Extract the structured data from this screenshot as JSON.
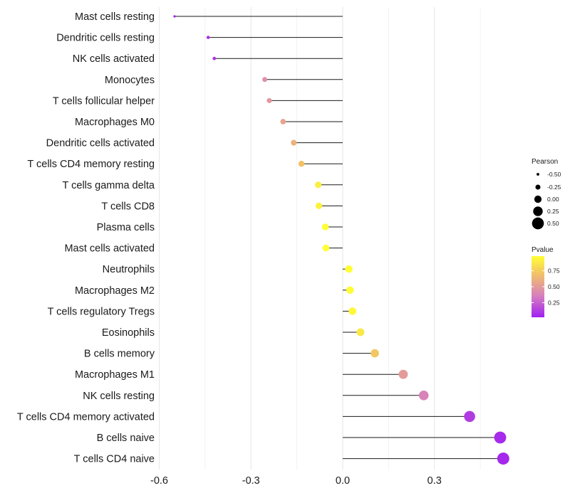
{
  "chart_data": {
    "type": "lollipop",
    "title": "",
    "xlabel": "",
    "ylabel": "",
    "xlim": [
      -0.62,
      0.56
    ],
    "xticks": [
      -0.6,
      -0.3,
      0.0,
      0.3
    ],
    "xtick_labels": [
      "-0.6",
      "-0.3",
      "0.0",
      "0.3"
    ],
    "grid": true,
    "baseline": 0.0,
    "categories": [
      "Mast cells resting",
      "Dendritic cells resting",
      "NK cells activated",
      "Monocytes",
      "T cells follicular helper",
      "Macrophages M0",
      "Dendritic cells activated",
      "T cells CD4 memory resting",
      "T cells gamma delta",
      "T cells CD8",
      "Plasma cells",
      "Mast cells activated",
      "Neutrophils",
      "Macrophages M2",
      "T cells regulatory  Tregs ",
      "Eosinophils",
      "B cells memory",
      "Macrophages M1",
      "NK cells resting",
      "T cells CD4 memory activated",
      "B cells naive",
      "T cells CD4 naive"
    ],
    "pearson": [
      -0.55,
      -0.44,
      -0.42,
      -0.255,
      -0.24,
      -0.195,
      -0.16,
      -0.135,
      -0.08,
      -0.078,
      -0.057,
      -0.055,
      0.02,
      0.024,
      0.032,
      0.058,
      0.105,
      0.198,
      0.265,
      0.415,
      0.515,
      0.525
    ],
    "pvalue": [
      0.02,
      0.08,
      0.1,
      0.45,
      0.48,
      0.55,
      0.62,
      0.7,
      0.9,
      0.92,
      0.98,
      0.98,
      0.98,
      0.97,
      0.95,
      0.88,
      0.72,
      0.5,
      0.38,
      0.12,
      0.06,
      0.05
    ],
    "legend_size": {
      "title": "Pearson",
      "labels": [
        "-0.50",
        "-0.25",
        "0.00",
        "0.25",
        "0.50"
      ],
      "values": [
        -0.5,
        -0.25,
        0.0,
        0.25,
        0.5
      ]
    },
    "legend_color": {
      "title": "Pvalue",
      "labels": [
        "0.75",
        "0.50",
        "0.25"
      ],
      "values": [
        0.75,
        0.5,
        0.25
      ],
      "range": [
        0.02,
        0.98
      ],
      "colors": [
        "#a020f0",
        "#d77fbe",
        "#f2c06a",
        "#ffff33"
      ]
    },
    "legend_position": "right"
  }
}
